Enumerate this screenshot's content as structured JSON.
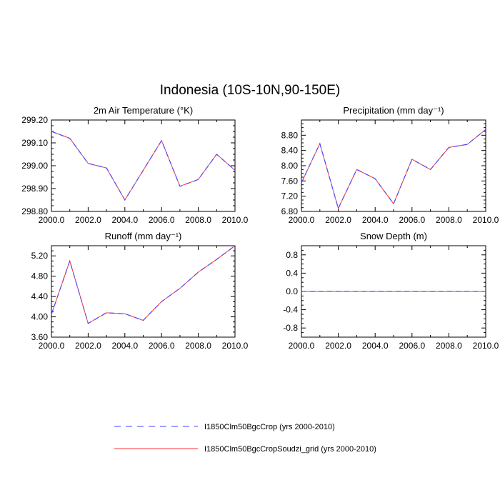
{
  "title": "Indonesia (10S-10N,90-150E)",
  "chart_data": [
    {
      "type": "line",
      "title": "2m Air Temperature (°K)",
      "x": [
        2000,
        2001,
        2002,
        2003,
        2004,
        2005,
        2006,
        2007,
        2008,
        2009,
        2010
      ],
      "xlim": [
        2000,
        2010
      ],
      "ylim": [
        298.8,
        299.2
      ],
      "xticks": [
        "2000.0",
        "2002.0",
        "2004.0",
        "2006.0",
        "2008.0",
        "2010.0"
      ],
      "yticks": [
        "298.80",
        "298.90",
        "299.00",
        "299.10",
        "299.20"
      ],
      "series": [
        {
          "name": "I1850Clm50BgcCrop (yrs 2000-2010)",
          "values": [
            299.15,
            299.12,
            299.01,
            298.99,
            298.85,
            298.98,
            299.11,
            298.91,
            298.94,
            299.05,
            298.98
          ]
        },
        {
          "name": "I1850Clm50BgcCropSoudzi_grid (yrs 2000-2010)",
          "values": [
            299.15,
            299.12,
            299.01,
            298.99,
            298.85,
            298.98,
            299.11,
            298.91,
            298.94,
            299.05,
            298.98
          ]
        }
      ]
    },
    {
      "type": "line",
      "title": "Precipitation (mm day⁻¹)",
      "x": [
        2000,
        2001,
        2002,
        2003,
        2004,
        2005,
        2006,
        2007,
        2008,
        2009,
        2010
      ],
      "xlim": [
        2000,
        2010
      ],
      "ylim": [
        6.8,
        9.2
      ],
      "xticks": [
        "2000.0",
        "2002.0",
        "2004.0",
        "2006.0",
        "2008.0",
        "2010.0"
      ],
      "yticks": [
        "6.80",
        "7.20",
        "7.60",
        "8.00",
        "8.40",
        "8.80"
      ],
      "series": [
        {
          "name": "I1850Clm50BgcCrop (yrs 2000-2010)",
          "values": [
            7.55,
            8.58,
            6.88,
            7.9,
            7.66,
            7.0,
            8.17,
            7.9,
            8.48,
            8.56,
            8.95
          ]
        },
        {
          "name": "I1850Clm50BgcCropSoudzi_grid (yrs 2000-2010)",
          "values": [
            7.55,
            8.58,
            6.88,
            7.9,
            7.66,
            7.0,
            8.17,
            7.9,
            8.48,
            8.56,
            8.95
          ]
        }
      ]
    },
    {
      "type": "line",
      "title": "Runoff (mm day⁻¹)",
      "x": [
        2000,
        2001,
        2002,
        2003,
        2004,
        2005,
        2006,
        2007,
        2008,
        2009,
        2010
      ],
      "xlim": [
        2000,
        2010
      ],
      "ylim": [
        3.6,
        5.4
      ],
      "xticks": [
        "2000.0",
        "2002.0",
        "2004.0",
        "2006.0",
        "2008.0",
        "2010.0"
      ],
      "yticks": [
        "3.60",
        "4.00",
        "4.40",
        "4.80",
        "5.20"
      ],
      "series": [
        {
          "name": "I1850Clm50BgcCrop (yrs 2000-2010)",
          "values": [
            4.05,
            5.1,
            3.87,
            4.08,
            4.06,
            3.93,
            4.3,
            4.56,
            4.88,
            5.13,
            5.4
          ]
        },
        {
          "name": "I1850Clm50BgcCropSoudzi_grid (yrs 2000-2010)",
          "values": [
            4.05,
            5.1,
            3.87,
            4.08,
            4.06,
            3.93,
            4.3,
            4.56,
            4.88,
            5.13,
            5.4
          ]
        }
      ]
    },
    {
      "type": "line",
      "title": "Snow Depth (m)",
      "x": [
        2000,
        2001,
        2002,
        2003,
        2004,
        2005,
        2006,
        2007,
        2008,
        2009,
        2010
      ],
      "xlim": [
        2000,
        2010
      ],
      "ylim": [
        -1.0,
        1.0
      ],
      "xticks": [
        "2000.0",
        "2002.0",
        "2004.0",
        "2006.0",
        "2008.0",
        "2010.0"
      ],
      "yticks": [
        "-0.8",
        "-0.4",
        "0.0",
        "0.4",
        "0.8"
      ],
      "series": [
        {
          "name": "I1850Clm50BgcCrop (yrs 2000-2010)",
          "values": [
            0,
            0,
            0,
            0,
            0,
            0,
            0,
            0,
            0,
            0,
            0
          ]
        },
        {
          "name": "I1850Clm50BgcCropSoudzi_grid (yrs 2000-2010)",
          "values": [
            0,
            0,
            0,
            0,
            0,
            0,
            0,
            0,
            0,
            0,
            0
          ]
        }
      ]
    }
  ],
  "legend": [
    {
      "label": "I1850Clm50BgcCrop (yrs 2000-2010)",
      "color": "#4040ff",
      "style": "dashed"
    },
    {
      "label": "I1850Clm50BgcCropSoudzi_grid (yrs 2000-2010)",
      "color": "#ff3030",
      "style": "solid"
    }
  ]
}
